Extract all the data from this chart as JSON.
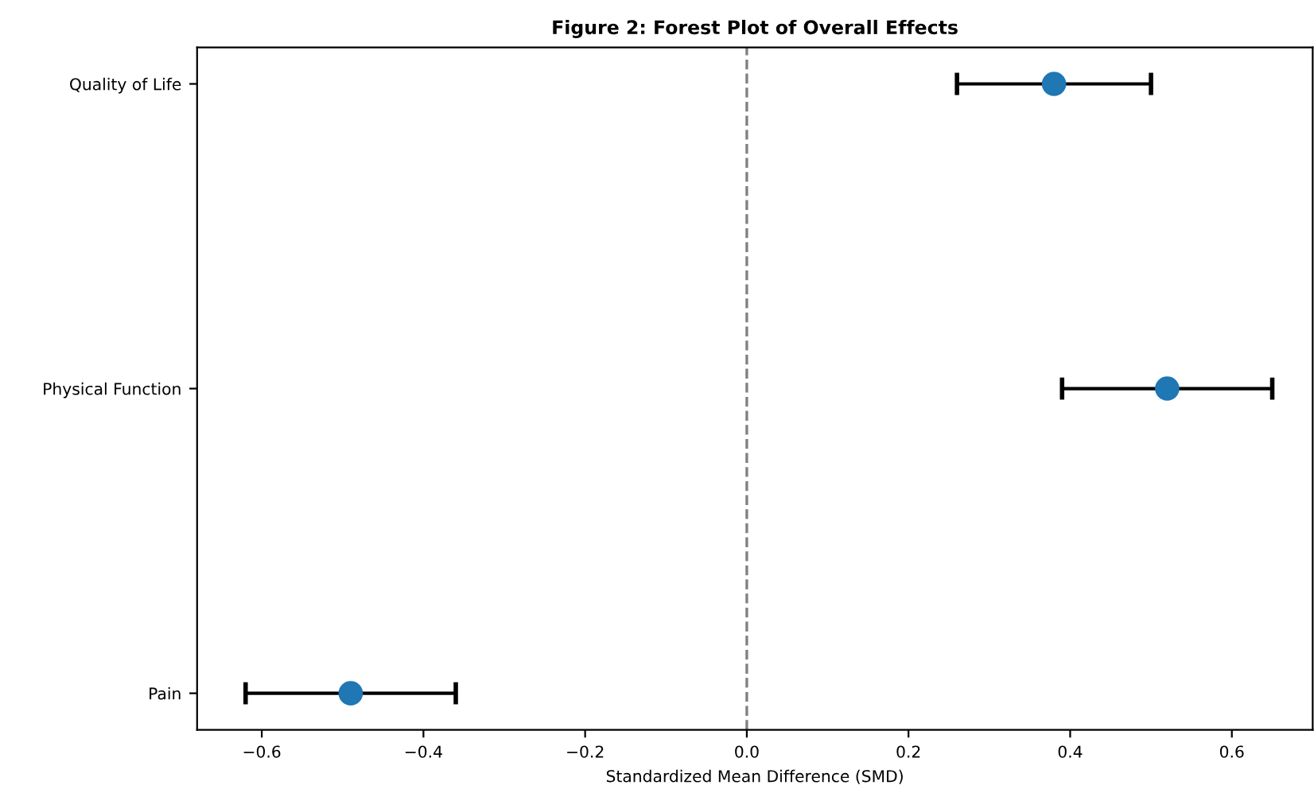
{
  "chart_data": {
    "type": "scatter",
    "orientation": "horizontal",
    "title": "Figure 2: Forest Plot of Overall Effects",
    "xlabel": "Standardized Mean Difference (SMD)",
    "categories": [
      "Quality of Life",
      "Physical Function",
      "Pain"
    ],
    "values": [
      0.38,
      0.52,
      -0.49
    ],
    "errors": [
      [
        0.26,
        0.5
      ],
      [
        0.39,
        0.65
      ],
      [
        -0.62,
        -0.36
      ]
    ],
    "color": "#1f77b4",
    "marker": "circle",
    "xlim": [
      -0.68,
      0.7
    ],
    "xticks": [
      {
        "value": -0.6,
        "label": "−0.6"
      },
      {
        "value": -0.4,
        "label": "−0.4"
      },
      {
        "value": -0.2,
        "label": "−0.2"
      },
      {
        "value": 0,
        "label": "0.0"
      },
      0.2,
      0.4,
      0.6
    ],
    "ref_lines": [
      {
        "axis": "x",
        "value": 0,
        "color": "#808080",
        "line_style": "dashed"
      }
    ],
    "grid": false
  }
}
